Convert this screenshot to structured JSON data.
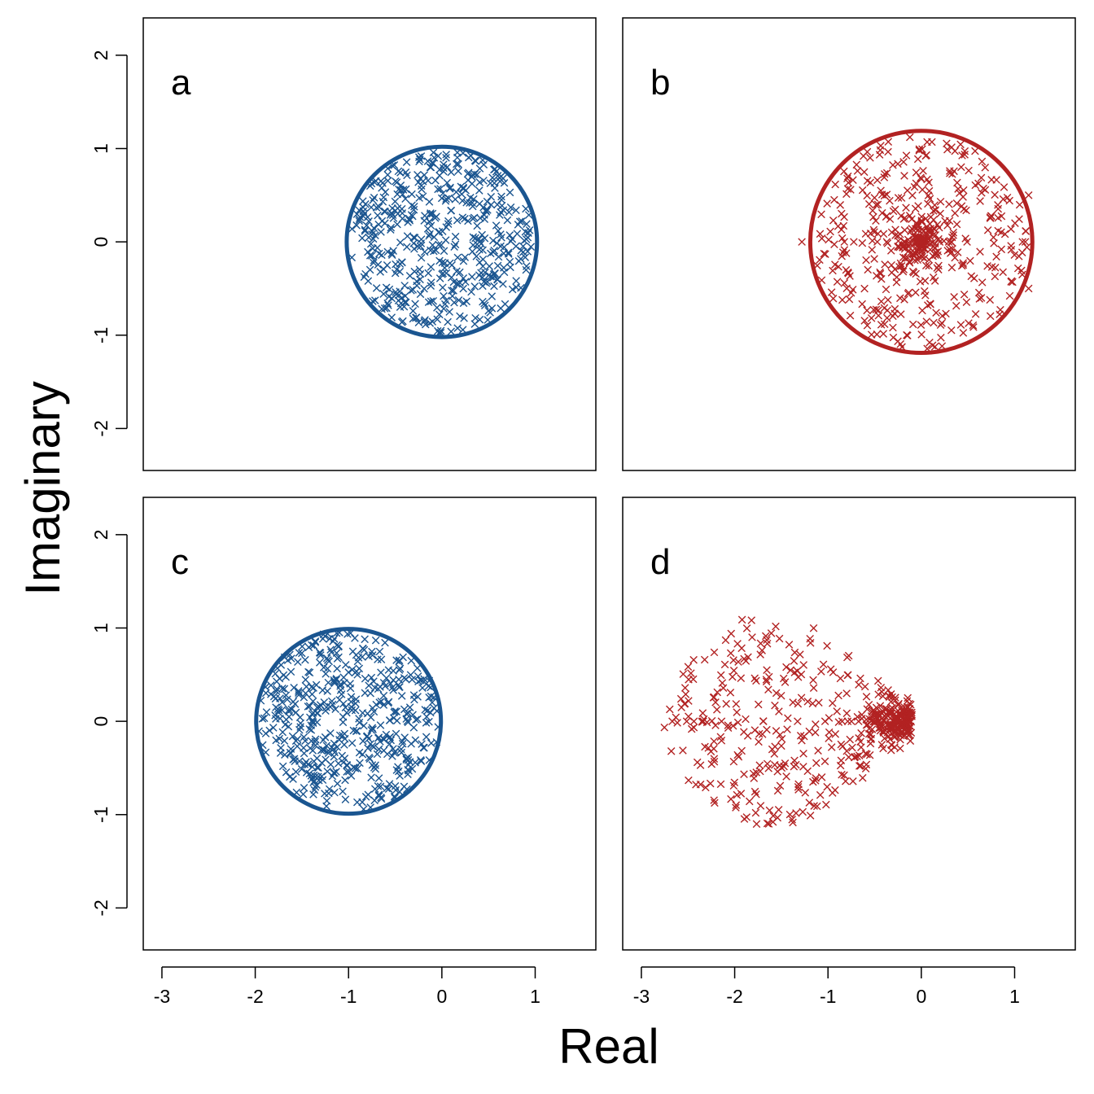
{
  "chart_data": {
    "type": "scatter",
    "xlabel": "Real",
    "ylabel": "Imaginary",
    "xlim": [
      -3.2,
      1.65
    ],
    "ylim": [
      -2.45,
      2.4
    ],
    "x_ticks": [
      -3,
      -2,
      -1,
      0,
      1
    ],
    "y_ticks": [
      -2,
      -1,
      0,
      1,
      2
    ],
    "grid": false,
    "colors": {
      "blue": "#1a5590",
      "red": "#b22222"
    },
    "panels": [
      {
        "label": "a",
        "color": "#1a5590",
        "circle": {
          "center": [
            0,
            0
          ],
          "radius": 1.02
        },
        "points": {
          "center": [
            0,
            0
          ],
          "radius": 0.98,
          "count": 500
        }
      },
      {
        "label": "b",
        "color": "#b22222",
        "circle": {
          "center": [
            0,
            0
          ],
          "radius": 1.19
        },
        "points": {
          "center": [
            0,
            0
          ],
          "radius": 1.15,
          "count": 500,
          "clustered_at_center": true,
          "outliers": [
            [
              -1.28,
              0
            ],
            [
              1.15,
              0.5
            ],
            [
              1.15,
              -0.5
            ]
          ]
        }
      },
      {
        "label": "c",
        "color": "#1a5590",
        "circle": {
          "center": [
            -1,
            0
          ],
          "radius": 0.99
        },
        "points": {
          "center": [
            -1,
            0
          ],
          "radius": 0.97,
          "count": 500
        }
      },
      {
        "label": "d",
        "color": "#b22222",
        "points": {
          "shape": "teardrop",
          "x_range": [
            -2.82,
            0
          ],
          "max_abs_imag": 1.15,
          "count": 500,
          "clustered_at": [
            -0.1,
            0
          ]
        }
      }
    ]
  }
}
